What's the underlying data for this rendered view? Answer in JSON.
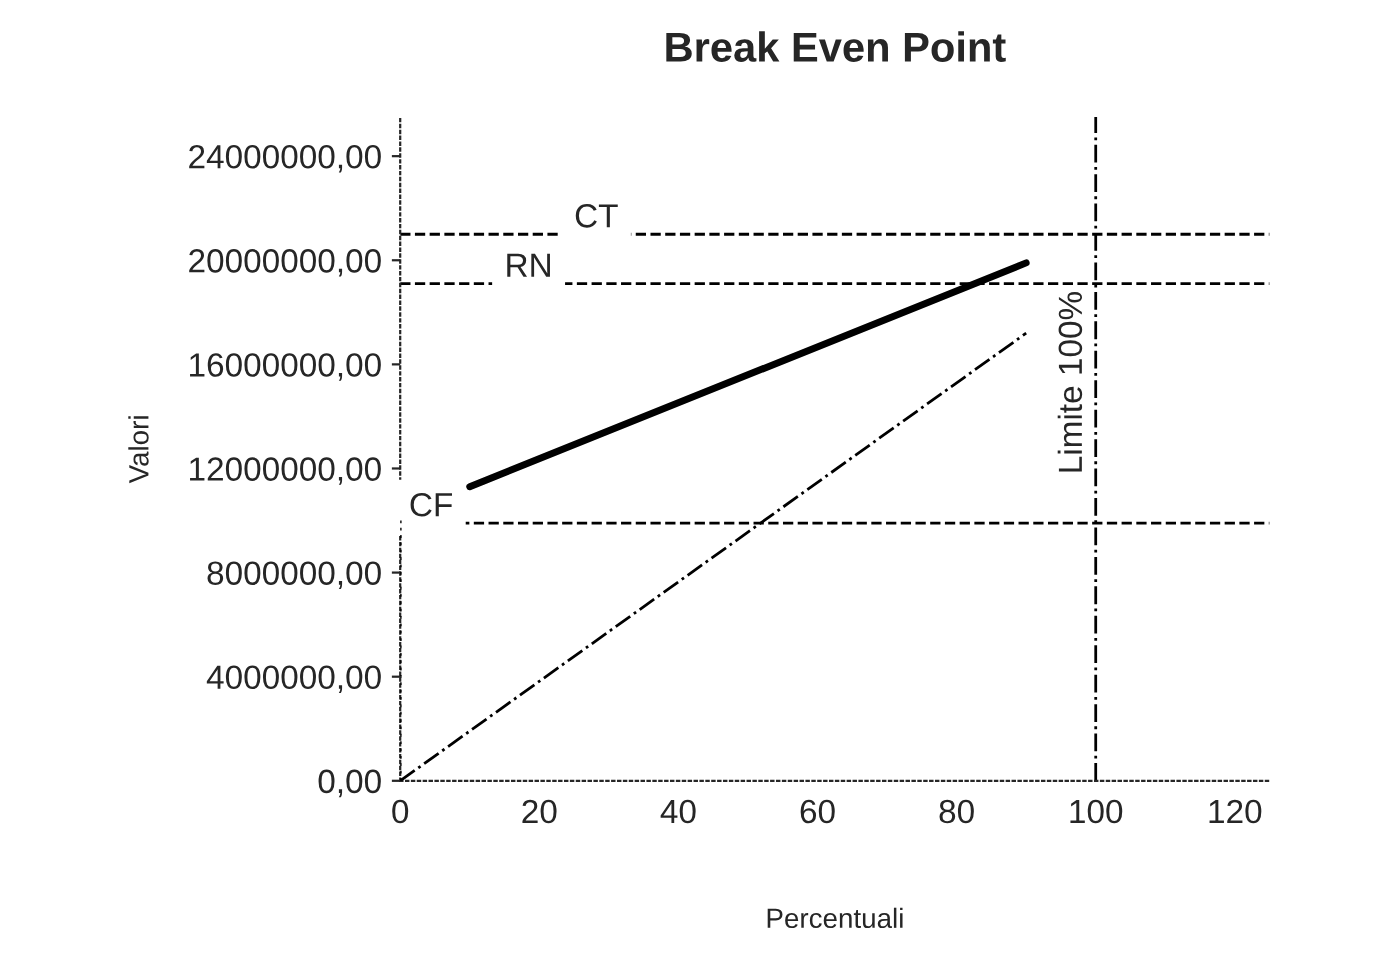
{
  "chart_data": {
    "type": "line",
    "title": "Break Even Point",
    "xlabel": "Percentuali",
    "ylabel": "Valori",
    "series": [
      {
        "x": [
          10,
          90
        ],
        "values": [
          11300000,
          19900000
        ],
        "color": "#000000",
        "line_style": "solid"
      },
      {
        "x": [
          0,
          90
        ],
        "values": [
          0,
          17200000
        ],
        "color": "#000000",
        "line_style": "dashdot"
      },
      {
        "x": [
          0,
          0
        ],
        "values": [
          0,
          10100000
        ],
        "color": "#000000",
        "line_style": "dotted"
      }
    ],
    "xlim": [
      0,
      125
    ],
    "xticks": [
      0,
      20,
      40,
      60,
      80,
      100,
      120
    ],
    "ylim": [
      0,
      25500000
    ],
    "yticks": [
      {
        "value": 0,
        "label": "0,00"
      },
      {
        "value": 4000000,
        "label": "4000000,00"
      },
      {
        "value": 8000000,
        "label": "8000000,00"
      },
      {
        "value": 12000000,
        "label": "12000000,00"
      },
      {
        "value": 16000000,
        "label": "16000000,00"
      },
      {
        "value": 20000000,
        "label": "20000000,00"
      },
      {
        "value": 24000000,
        "label": "24000000,00"
      }
    ],
    "ref_lines": [
      {
        "axis": "y",
        "value": 21000000,
        "label": "CT",
        "color": "#000000",
        "line_style": "dashed"
      },
      {
        "axis": "y",
        "value": 19100000,
        "label": "RN",
        "color": "#000000",
        "line_style": "dashed"
      },
      {
        "axis": "y",
        "value": 9900000,
        "label": "CF",
        "color": "#000000",
        "line_style": "dashed"
      },
      {
        "axis": "x",
        "value": 100,
        "label": "Limite 100%",
        "color": "#000000",
        "line_style": "dashdot"
      }
    ],
    "grid": false,
    "legend": false
  }
}
